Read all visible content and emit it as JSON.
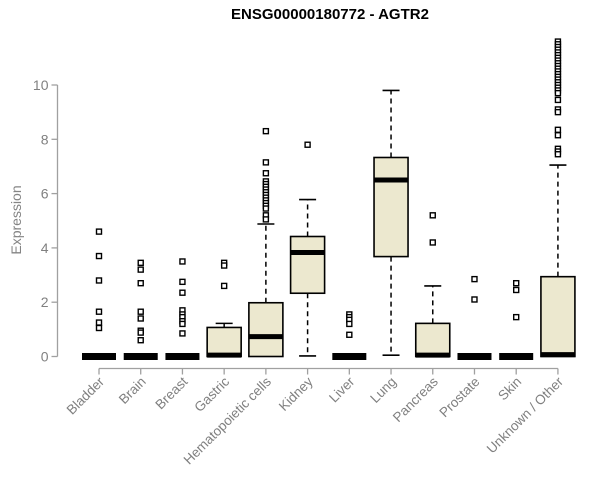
{
  "title": "ENSG00000180772 - AGTR2",
  "chart_data": {
    "type": "boxplot",
    "title": "ENSG00000180772 - AGTR2",
    "ylabel": "Expression",
    "xlabel": "",
    "ylim": [
      0,
      10
    ],
    "yticks": [
      0,
      2,
      4,
      6,
      8,
      10
    ],
    "grid": "off",
    "legend": "none",
    "colors": {
      "box_fill": "#ece8cf",
      "box_stroke": "#000000",
      "median": "#000000",
      "axis_line": "#a0a0a0",
      "tick_label": "#808080",
      "title": "#000000",
      "outlier_fill": "#ffffff",
      "outlier_stroke": "#000000"
    },
    "categories": [
      "Bladder",
      "Brain",
      "Breast",
      "Gastric",
      "Hematopoietic cells",
      "Kidney",
      "Liver",
      "Lung",
      "Pancreas",
      "Prostate",
      "Skin",
      "Unknown / Other"
    ],
    "series": [
      {
        "category": "Bladder",
        "collapsed": true,
        "q1": 0,
        "median": 0,
        "q3": 0,
        "whisker_low": 0,
        "whisker_high": 0,
        "outliers": [
          4.6,
          3.7,
          2.8,
          1.65,
          1.25,
          1.05
        ]
      },
      {
        "category": "Brain",
        "collapsed": true,
        "q1": 0,
        "median": 0,
        "q3": 0,
        "whisker_low": 0,
        "whisker_high": 0,
        "outliers": [
          3.45,
          3.2,
          2.7,
          1.65,
          1.4,
          0.95,
          0.88,
          0.6
        ]
      },
      {
        "category": "Breast",
        "collapsed": true,
        "q1": 0,
        "median": 0,
        "q3": 0,
        "whisker_low": 0,
        "whisker_high": 0,
        "outliers": [
          3.5,
          2.75,
          2.35,
          1.7,
          1.55,
          1.45,
          1.3,
          1.2,
          0.85
        ]
      },
      {
        "category": "Gastric",
        "collapsed": false,
        "q1": 0,
        "median": 0.05,
        "q3": 1.07,
        "whisker_low": 0,
        "whisker_high": 1.22,
        "outliers": [
          3.45,
          3.35,
          2.6
        ]
      },
      {
        "category": "Hematopoietic cells",
        "collapsed": false,
        "q1": 0,
        "median": 0.73,
        "q3": 1.98,
        "whisker_low": 0,
        "whisker_high": 4.88,
        "outliers": [
          8.3,
          7.15,
          6.75,
          6.45,
          6.35,
          6.25,
          6.15,
          6.05,
          5.95,
          5.85,
          5.75,
          5.65,
          5.55,
          5.45,
          5.2,
          5.05
        ]
      },
      {
        "category": "Kidney",
        "collapsed": false,
        "q1": 2.33,
        "median": 3.83,
        "q3": 4.42,
        "whisker_low": 0.02,
        "whisker_high": 5.78,
        "outliers": [
          7.8
        ]
      },
      {
        "category": "Liver",
        "collapsed": true,
        "q1": 0,
        "median": 0,
        "q3": 0,
        "whisker_low": 0,
        "whisker_high": 0,
        "outliers": [
          1.55,
          1.45,
          1.35,
          1.2,
          0.8
        ]
      },
      {
        "category": "Lung",
        "collapsed": false,
        "q1": 3.68,
        "median": 6.5,
        "q3": 7.33,
        "whisker_low": 0.05,
        "whisker_high": 9.8,
        "outliers": []
      },
      {
        "category": "Pancreas",
        "collapsed": false,
        "q1": 0,
        "median": 0.05,
        "q3": 1.22,
        "whisker_low": 0,
        "whisker_high": 2.6,
        "outliers": [
          5.2,
          4.2
        ]
      },
      {
        "category": "Prostate",
        "collapsed": true,
        "q1": 0,
        "median": 0,
        "q3": 0,
        "whisker_low": 0,
        "whisker_high": 0,
        "outliers": [
          2.85,
          2.1
        ]
      },
      {
        "category": "Skin",
        "collapsed": true,
        "q1": 0,
        "median": 0,
        "q3": 0,
        "whisker_low": 0,
        "whisker_high": 0,
        "outliers": [
          2.7,
          2.45,
          1.45
        ]
      },
      {
        "category": "Unknown / Other",
        "collapsed": false,
        "q1": 0,
        "median": 0.07,
        "q3": 2.94,
        "whisker_low": 0,
        "whisker_high": 7.05,
        "outliers": [
          11.6,
          11.5,
          11.4,
          11.3,
          11.2,
          11.1,
          11.0,
          10.9,
          10.8,
          10.7,
          10.6,
          10.5,
          10.4,
          10.3,
          10.2,
          10.1,
          10.0,
          9.9,
          9.8,
          9.7,
          9.45,
          9.1,
          9.0,
          8.35,
          8.15,
          7.65,
          7.55,
          7.45
        ]
      }
    ]
  }
}
